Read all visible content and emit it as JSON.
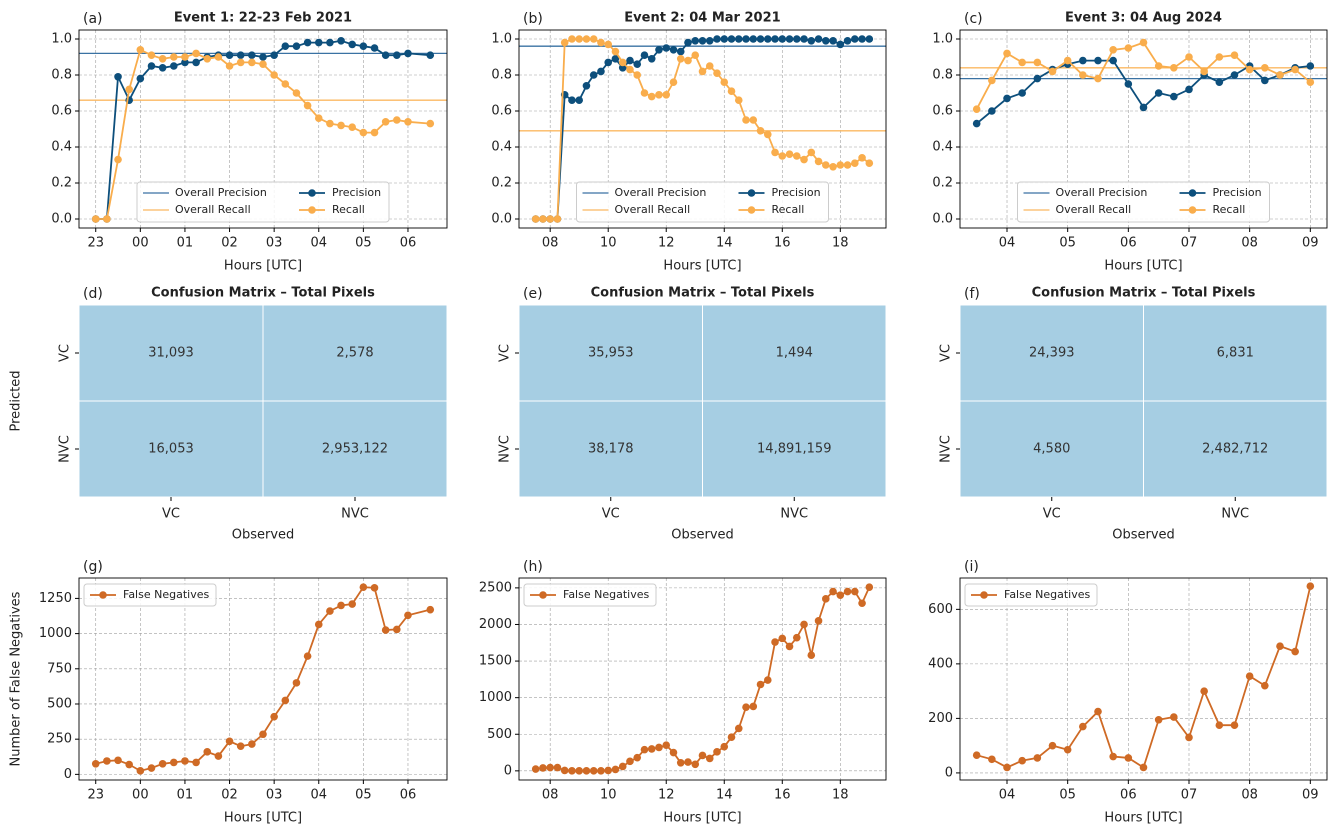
{
  "chart_data": [
    {
      "type": "line",
      "panel_label": "(a)",
      "title": "Event 1: 22-23 Feb 2021",
      "xlabel": "Hours [UTC]",
      "x": [
        23,
        23.25,
        23.5,
        23.75,
        24,
        24.25,
        24.5,
        24.75,
        25,
        25.25,
        25.5,
        25.75,
        26,
        26.25,
        26.5,
        26.75,
        27,
        27.25,
        27.5,
        27.75,
        28,
        28.25,
        28.5,
        28.75,
        29,
        29.25,
        29.5,
        29.75,
        30,
        30.5
      ],
      "series": [
        {
          "name": "Precision",
          "color": "#0d4f7c",
          "values": [
            0,
            0,
            0.79,
            0.66,
            0.78,
            0.85,
            0.84,
            0.85,
            0.87,
            0.87,
            0.9,
            0.91,
            0.91,
            0.91,
            0.91,
            0.9,
            0.91,
            0.96,
            0.96,
            0.98,
            0.98,
            0.98,
            0.99,
            0.97,
            0.96,
            0.95,
            0.91,
            0.91,
            0.92,
            0.91
          ]
        },
        {
          "name": "Recall",
          "color": "#f9ad4c",
          "values": [
            0,
            0,
            0.33,
            0.72,
            0.94,
            0.91,
            0.89,
            0.9,
            0.9,
            0.92,
            0.89,
            0.9,
            0.85,
            0.87,
            0.87,
            0.86,
            0.8,
            0.75,
            0.7,
            0.63,
            0.56,
            0.53,
            0.52,
            0.51,
            0.48,
            0.48,
            0.54,
            0.55,
            0.54,
            0.53
          ]
        }
      ],
      "reference_lines": [
        {
          "name": "Overall Precision",
          "color": "#3a72a3",
          "value": 0.92
        },
        {
          "name": "Overall Recall",
          "color": "#fbb862",
          "value": 0.66
        }
      ],
      "xlim": [
        22.625,
        30.875
      ],
      "ylim": [
        -0.05,
        1.05
      ],
      "xticks": [
        23,
        {
          "value": 24,
          "label": "00"
        },
        {
          "value": 25,
          "label": "01"
        },
        {
          "value": 26,
          "label": "02"
        },
        {
          "value": 27,
          "label": "03"
        },
        {
          "value": 28,
          "label": "04"
        },
        {
          "value": 29,
          "label": "05"
        },
        {
          "value": 30,
          "label": "06"
        }
      ],
      "yticks": [
        {
          "value": 0,
          "label": "0.0"
        },
        0.2,
        0.4,
        0.6,
        0.8,
        {
          "value": 1,
          "label": "1.0"
        }
      ],
      "grid": true,
      "legend": "lower center"
    },
    {
      "type": "line",
      "panel_label": "(b)",
      "title": "Event 2: 04 Mar 2021",
      "xlabel": "Hours [UTC]",
      "x": [
        7.5,
        7.75,
        8,
        8.25,
        8.5,
        8.75,
        9,
        9.25,
        9.5,
        9.75,
        10,
        10.25,
        10.5,
        10.75,
        11,
        11.25,
        11.5,
        11.75,
        12,
        12.25,
        12.5,
        12.75,
        13,
        13.25,
        13.5,
        13.75,
        14,
        14.25,
        14.5,
        14.75,
        15,
        15.25,
        15.5,
        15.75,
        16,
        16.25,
        16.5,
        16.75,
        17,
        17.25,
        17.5,
        17.75,
        18,
        18.25,
        18.5,
        18.75,
        19
      ],
      "series": [
        {
          "name": "Precision",
          "color": "#0d4f7c",
          "values": [
            0,
            0,
            0,
            0,
            0.69,
            0.66,
            0.66,
            0.74,
            0.8,
            0.82,
            0.87,
            0.89,
            0.84,
            0.88,
            0.86,
            0.91,
            0.89,
            0.94,
            0.95,
            0.94,
            0.93,
            0.98,
            0.99,
            0.99,
            0.99,
            1,
            1,
            1,
            1,
            1,
            1,
            1,
            1,
            1,
            1,
            1,
            1,
            1,
            0.99,
            1,
            0.99,
            0.99,
            0.97,
            0.99,
            1,
            1,
            1
          ]
        },
        {
          "name": "Recall",
          "color": "#f9ad4c",
          "values": [
            0,
            0,
            0,
            0,
            0.98,
            1,
            1,
            1,
            1,
            0.98,
            0.97,
            0.93,
            0.87,
            0.83,
            0.8,
            0.7,
            0.68,
            0.69,
            0.69,
            0.76,
            0.89,
            0.88,
            0.91,
            0.82,
            0.85,
            0.81,
            0.76,
            0.71,
            0.66,
            0.55,
            0.55,
            0.49,
            0.47,
            0.37,
            0.35,
            0.36,
            0.35,
            0.33,
            0.37,
            0.32,
            0.3,
            0.29,
            0.3,
            0.3,
            0.31,
            0.34,
            0.31
          ]
        }
      ],
      "reference_lines": [
        {
          "name": "Overall Precision",
          "color": "#3a72a3",
          "value": 0.96
        },
        {
          "name": "Overall Recall",
          "color": "#fbb862",
          "value": 0.49
        }
      ],
      "xlim": [
        6.925,
        19.575
      ],
      "ylim": [
        -0.05,
        1.05
      ],
      "xticks": [
        {
          "value": 8,
          "label": "08"
        },
        10,
        12,
        14,
        16,
        18
      ],
      "yticks": [
        {
          "value": 0,
          "label": "0.0"
        },
        0.2,
        0.4,
        0.6,
        0.8,
        {
          "value": 1,
          "label": "1.0"
        }
      ],
      "grid": true,
      "legend": "lower center"
    },
    {
      "type": "line",
      "panel_label": "(c)",
      "title": "Event 3: 04 Aug 2024",
      "xlabel": "Hours [UTC]",
      "x": [
        3.5,
        3.75,
        4,
        4.25,
        4.5,
        4.75,
        5,
        5.25,
        5.5,
        5.75,
        6,
        6.25,
        6.5,
        6.75,
        7,
        7.25,
        7.5,
        7.75,
        8,
        8.25,
        8.5,
        8.75,
        9
      ],
      "series": [
        {
          "name": "Precision",
          "color": "#0d4f7c",
          "values": [
            0.53,
            0.6,
            0.67,
            0.7,
            0.78,
            0.83,
            0.86,
            0.88,
            0.88,
            0.88,
            0.75,
            0.62,
            0.7,
            0.68,
            0.72,
            0.8,
            0.76,
            0.8,
            0.85,
            0.77,
            0.8,
            0.84,
            0.85
          ]
        },
        {
          "name": "Recall",
          "color": "#f9ad4c",
          "values": [
            0.61,
            0.77,
            0.92,
            0.87,
            0.87,
            0.82,
            0.88,
            0.8,
            0.78,
            0.94,
            0.95,
            0.98,
            0.85,
            0.84,
            0.9,
            0.82,
            0.9,
            0.91,
            0.83,
            0.84,
            0.8,
            0.83,
            0.76
          ]
        }
      ],
      "reference_lines": [
        {
          "name": "Overall Precision",
          "color": "#3a72a3",
          "value": 0.78
        },
        {
          "name": "Overall Recall",
          "color": "#fbb862",
          "value": 0.84
        }
      ],
      "xlim": [
        3.225,
        9.275
      ],
      "ylim": [
        -0.05,
        1.05
      ],
      "xticks": [
        {
          "value": 4,
          "label": "04"
        },
        {
          "value": 5,
          "label": "05"
        },
        {
          "value": 6,
          "label": "06"
        },
        {
          "value": 7,
          "label": "07"
        },
        {
          "value": 8,
          "label": "08"
        },
        {
          "value": 9,
          "label": "09"
        }
      ],
      "yticks": [
        {
          "value": 0,
          "label": "0.0"
        },
        0.2,
        0.4,
        0.6,
        0.8,
        {
          "value": 1,
          "label": "1.0"
        }
      ],
      "grid": true,
      "legend": "lower center"
    },
    {
      "type": "confusion_matrix",
      "panel_label": "(d)",
      "title": "Confusion Matrix – Total Pixels",
      "xlabel": "Observed",
      "ylabel": "Predicted",
      "color": "#a6cee3",
      "x_categories": [
        "VC",
        "NVC"
      ],
      "y_categories": [
        "VC",
        "NVC"
      ],
      "values": [
        [
          31093,
          2578
        ],
        [
          16053,
          2953122
        ]
      ],
      "value_labels": [
        [
          "31,093",
          "2,578"
        ],
        [
          "16,053",
          "2,953,122"
        ]
      ]
    },
    {
      "type": "confusion_matrix",
      "panel_label": "(e)",
      "title": "Confusion Matrix – Total Pixels",
      "xlabel": "Observed",
      "color": "#a6cee3",
      "x_categories": [
        "VC",
        "NVC"
      ],
      "y_categories": [
        "VC",
        "NVC"
      ],
      "values": [
        [
          35953,
          1494
        ],
        [
          38178,
          14891159
        ]
      ],
      "value_labels": [
        [
          "35,953",
          "1,494"
        ],
        [
          "38,178",
          "14,891,159"
        ]
      ]
    },
    {
      "type": "confusion_matrix",
      "panel_label": "(f)",
      "title": "Confusion Matrix – Total Pixels",
      "xlabel": "Observed",
      "color": "#a6cee3",
      "x_categories": [
        "VC",
        "NVC"
      ],
      "y_categories": [
        "VC",
        "NVC"
      ],
      "values": [
        [
          24393,
          6831
        ],
        [
          4580,
          2482712
        ]
      ],
      "value_labels": [
        [
          "24,393",
          "6,831"
        ],
        [
          "4,580",
          "2,482,712"
        ]
      ]
    },
    {
      "type": "line",
      "panel_label": "(g)",
      "xlabel": "Hours [UTC]",
      "ylabel": "Number of False Negatives",
      "x": [
        23,
        23.25,
        23.5,
        23.75,
        24,
        24.25,
        24.5,
        24.75,
        25,
        25.25,
        25.5,
        25.75,
        26,
        26.25,
        26.5,
        26.75,
        27,
        27.25,
        27.5,
        27.75,
        28,
        28.25,
        28.5,
        28.75,
        29,
        29.25,
        29.5,
        29.75,
        30,
        30.5
      ],
      "series": [
        {
          "name": "False Negatives",
          "color": "#cf6a25",
          "values": [
            75,
            95,
            100,
            70,
            25,
            45,
            75,
            85,
            95,
            85,
            160,
            130,
            235,
            200,
            215,
            285,
            410,
            525,
            650,
            840,
            1065,
            1160,
            1200,
            1210,
            1330,
            1325,
            1025,
            1030,
            1130,
            1170
          ]
        }
      ],
      "xlim": [
        22.625,
        30.875
      ],
      "ylim": [
        -40,
        1395
      ],
      "xticks": [
        23,
        {
          "value": 24,
          "label": "00"
        },
        {
          "value": 25,
          "label": "01"
        },
        {
          "value": 26,
          "label": "02"
        },
        {
          "value": 27,
          "label": "03"
        },
        {
          "value": 28,
          "label": "04"
        },
        {
          "value": 29,
          "label": "05"
        },
        {
          "value": 30,
          "label": "06"
        }
      ],
      "yticks": [
        0,
        250,
        500,
        750,
        1000,
        1250
      ],
      "grid": true,
      "legend": "upper left"
    },
    {
      "type": "line",
      "panel_label": "(h)",
      "xlabel": "Hours [UTC]",
      "x": [
        7.5,
        7.75,
        8,
        8.25,
        8.5,
        8.75,
        9,
        9.25,
        9.5,
        9.75,
        10,
        10.25,
        10.5,
        10.75,
        11,
        11.25,
        11.5,
        11.75,
        12,
        12.25,
        12.5,
        12.75,
        13,
        13.25,
        13.5,
        13.75,
        14,
        14.25,
        14.5,
        14.75,
        15,
        15.25,
        15.5,
        15.75,
        16,
        16.25,
        16.5,
        16.75,
        17,
        17.25,
        17.5,
        17.75,
        18,
        18.25,
        18.5,
        18.75,
        19
      ],
      "series": [
        {
          "name": "False Negatives",
          "color": "#cf6a25",
          "values": [
            25,
            40,
            45,
            45,
            5,
            0,
            0,
            0,
            0,
            0,
            5,
            20,
            60,
            130,
            180,
            290,
            300,
            320,
            350,
            250,
            110,
            120,
            90,
            210,
            170,
            260,
            330,
            460,
            580,
            870,
            880,
            1180,
            1240,
            1760,
            1810,
            1700,
            1820,
            2000,
            1580,
            2050,
            2350,
            2450,
            2400,
            2450,
            2450,
            2290,
            2510
          ]
        }
      ],
      "xlim": [
        6.925,
        19.575
      ],
      "ylim": [
        -125,
        2635
      ],
      "xticks": [
        {
          "value": 8,
          "label": "08"
        },
        10,
        12,
        14,
        16,
        18
      ],
      "yticks": [
        0,
        500,
        1000,
        1500,
        2000,
        2500
      ],
      "grid": true,
      "legend": "upper left"
    },
    {
      "type": "line",
      "panel_label": "(i)",
      "xlabel": "Hours [UTC]",
      "x": [
        3.5,
        3.75,
        4,
        4.25,
        4.5,
        4.75,
        5,
        5.25,
        5.5,
        5.75,
        6,
        6.25,
        6.5,
        6.75,
        7,
        7.25,
        7.5,
        7.75,
        8,
        8.25,
        8.5,
        8.75,
        9
      ],
      "series": [
        {
          "name": "False Negatives",
          "color": "#cf6a25",
          "values": [
            65,
            50,
            20,
            45,
            55,
            100,
            85,
            170,
            225,
            60,
            55,
            20,
            195,
            205,
            130,
            300,
            175,
            175,
            355,
            320,
            465,
            445,
            685
          ]
        }
      ],
      "xlim": [
        3.225,
        9.275
      ],
      "ylim": [
        -26,
        715
      ],
      "xticks": [
        {
          "value": 4,
          "label": "04"
        },
        {
          "value": 5,
          "label": "05"
        },
        {
          "value": 6,
          "label": "06"
        },
        {
          "value": 7,
          "label": "07"
        },
        {
          "value": 8,
          "label": "08"
        },
        {
          "value": 9,
          "label": "09"
        }
      ],
      "yticks": [
        0,
        200,
        400,
        600
      ],
      "grid": true,
      "legend": "upper left"
    }
  ]
}
